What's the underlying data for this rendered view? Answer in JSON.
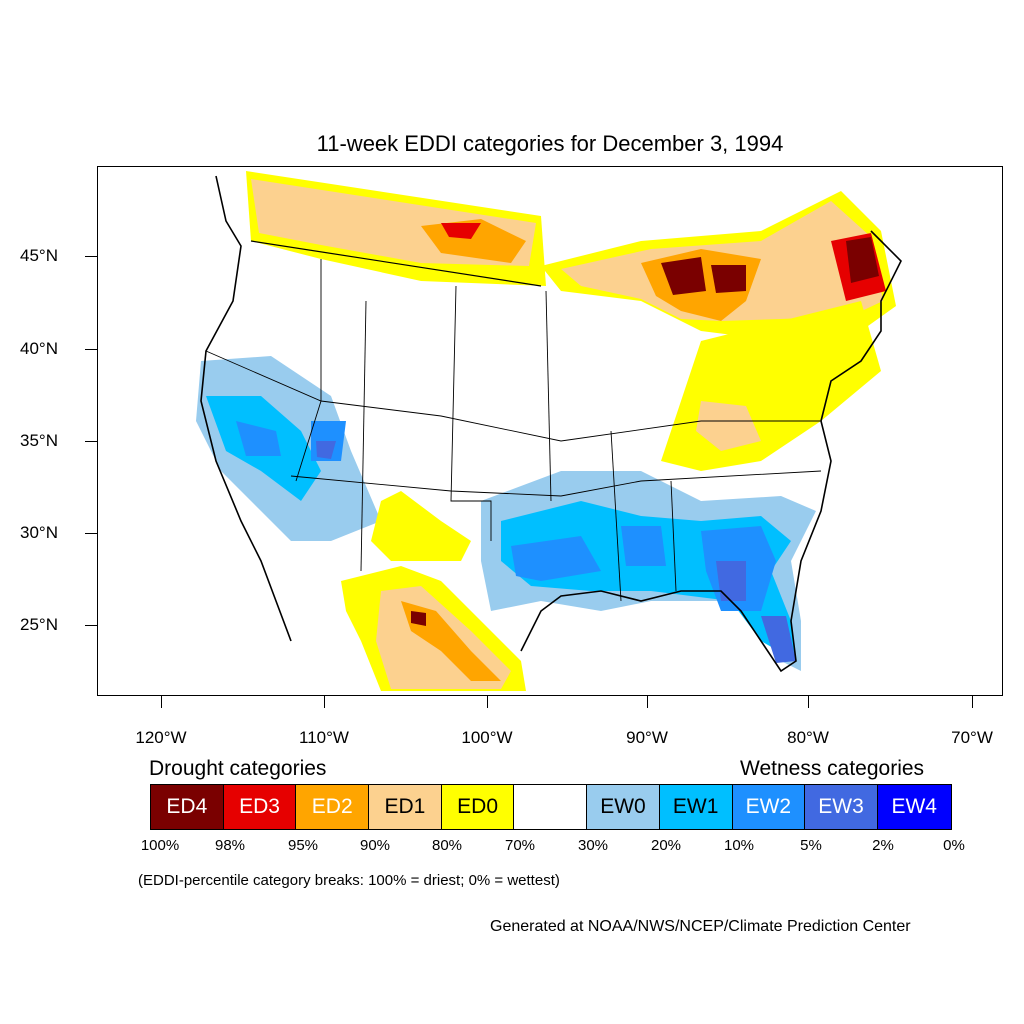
{
  "title": "11-week EDDI categories for December 3, 1994",
  "latitude_labels": [
    "45°N",
    "40°N",
    "35°N",
    "30°N",
    "25°N"
  ],
  "longitude_labels": [
    "120°W",
    "110°W",
    "100°W",
    "90°W",
    "80°W",
    "70°W"
  ],
  "legend": {
    "drought_heading": "Drought categories",
    "wetness_heading": "Wetness categories",
    "categories": [
      {
        "label": "ED4",
        "color": "#7a0000",
        "text_color": "#ffffff"
      },
      {
        "label": "ED3",
        "color": "#e60000",
        "text_color": "#ffffff"
      },
      {
        "label": "ED2",
        "color": "#ffa500",
        "text_color": "#ffffff"
      },
      {
        "label": "ED1",
        "color": "#fcd18f",
        "text_color": "#000000"
      },
      {
        "label": "ED0",
        "color": "#ffff00",
        "text_color": "#000000"
      },
      {
        "label": "",
        "color": "#ffffff",
        "text_color": "#000000"
      },
      {
        "label": "EW0",
        "color": "#99ccee",
        "text_color": "#000000"
      },
      {
        "label": "EW1",
        "color": "#00bfff",
        "text_color": "#000000"
      },
      {
        "label": "EW2",
        "color": "#1e90ff",
        "text_color": "#ffffff"
      },
      {
        "label": "EW3",
        "color": "#4169e1",
        "text_color": "#ffffff"
      },
      {
        "label": "EW4",
        "color": "#0000ff",
        "text_color": "#ffffff"
      }
    ],
    "breaks": [
      "100%",
      "98%",
      "95%",
      "90%",
      "80%",
      "70%",
      "30%",
      "20%",
      "10%",
      "5%",
      "2%",
      "0%"
    ]
  },
  "note": "(EDDI-percentile category breaks: 100% = driest; 0% = wettest)",
  "credit": "Generated at NOAA/NWS/NCEP/Climate Prediction Center"
}
